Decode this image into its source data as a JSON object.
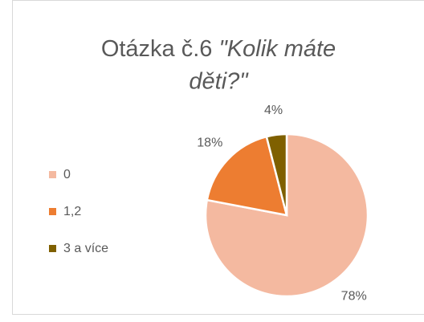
{
  "chart_data": {
    "type": "pie",
    "title": [
      "Otázka č.6",
      "\"Kolik máte",
      "děti?\""
    ],
    "categories": [
      "0",
      "1,2",
      "3 a více"
    ],
    "values": [
      78,
      18,
      4
    ],
    "value_labels": [
      "78%",
      "18%",
      "4%"
    ],
    "colors": [
      "#f4b9a0",
      "#ed7d31",
      "#7f6000"
    ],
    "legend": "left"
  }
}
